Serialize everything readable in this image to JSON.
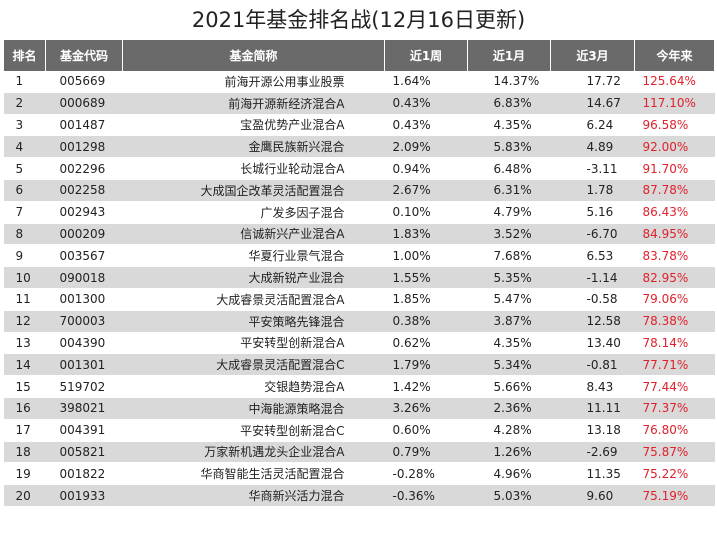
{
  "title": "2021年基金排名战(12月16日更新)",
  "headers": [
    "排名",
    "基金代码",
    "基金简称",
    "近1周",
    "近1月",
    "近3月",
    "今年来"
  ],
  "rows": [
    [
      "1",
      "005669",
      "前海开源公用事业股票",
      "1.64%",
      "14.37%",
      "17.72",
      "125.64%"
    ],
    [
      "2",
      "000689",
      "前海开源新经济混合A",
      "0.43%",
      "6.83%",
      "14.67",
      "117.10%"
    ],
    [
      "3",
      "001487",
      "宝盈优势产业混合A",
      "0.43%",
      "4.35%",
      "6.24",
      "96.58%"
    ],
    [
      "4",
      "001298",
      "金鹰民族新兴混合",
      "2.09%",
      "5.83%",
      "4.89",
      "92.00%"
    ],
    [
      "5",
      "002296",
      "长城行业轮动混合A",
      "0.94%",
      "6.48%",
      "-3.11",
      "91.70%"
    ],
    [
      "6",
      "002258",
      "大成国企改革灵活配置混合",
      "2.67%",
      "6.31%",
      "1.78",
      "87.78%"
    ],
    [
      "7",
      "002943",
      "广发多因子混合",
      "0.10%",
      "4.79%",
      "5.16",
      "86.43%"
    ],
    [
      "8",
      "000209",
      "信诚新兴产业混合A",
      "1.83%",
      "3.52%",
      "-6.70",
      "84.95%"
    ],
    [
      "9",
      "003567",
      "华夏行业景气混合",
      "1.00%",
      "7.68%",
      "6.53",
      "83.78%"
    ],
    [
      "10",
      "090018",
      "大成新锐产业混合",
      "1.55%",
      "5.35%",
      "-1.14",
      "82.95%"
    ],
    [
      "11",
      "001300",
      "大成睿景灵活配置混合A",
      "1.85%",
      "5.47%",
      "-0.58",
      "79.06%"
    ],
    [
      "12",
      "700003",
      "平安策略先锋混合",
      "0.38%",
      "3.87%",
      "12.58",
      "78.38%"
    ],
    [
      "13",
      "004390",
      "平安转型创新混合A",
      "0.62%",
      "4.35%",
      "13.40",
      "78.14%"
    ],
    [
      "14",
      "001301",
      "大成睿景灵活配置混合C",
      "1.79%",
      "5.34%",
      "-0.81",
      "77.71%"
    ],
    [
      "15",
      "519702",
      "交银趋势混合A",
      "1.42%",
      "5.66%",
      "8.43",
      "77.44%"
    ],
    [
      "16",
      "398021",
      "中海能源策略混合",
      "3.26%",
      "2.36%",
      "11.11",
      "77.37%"
    ],
    [
      "17",
      "004391",
      "平安转型创新混合C",
      "0.60%",
      "4.28%",
      "13.18",
      "76.80%"
    ],
    [
      "18",
      "005821",
      "万家新机遇龙头企业混合A",
      "0.79%",
      "1.26%",
      "-2.69",
      "75.87%"
    ],
    [
      "19",
      "001822",
      "华商智能生活灵活配置混合",
      "-0.28%",
      "4.96%",
      "11.35",
      "75.22%"
    ],
    [
      "20",
      "001933",
      "华商新兴活力混合",
      "-0.36%",
      "5.03%",
      "9.60",
      "75.19%"
    ]
  ],
  "colors": {
    "header_bg": "#6a6a6a",
    "stripe": "#d9d9d9",
    "ytd_text": "#e0212b"
  }
}
